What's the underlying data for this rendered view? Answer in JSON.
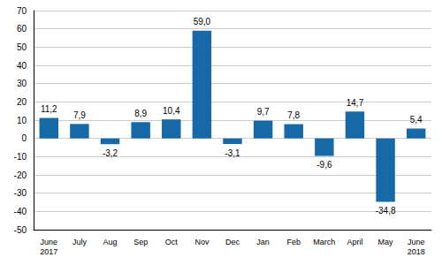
{
  "chart_data": {
    "type": "bar",
    "categories": [
      "June\n2017",
      "July",
      "Aug",
      "Sep",
      "Oct",
      "Nov",
      "Dec",
      "Jan",
      "Feb",
      "March",
      "April",
      "May",
      "June\n2018"
    ],
    "values": [
      11.2,
      7.9,
      -3.2,
      8.9,
      10.4,
      59.0,
      -3.1,
      9.7,
      7.8,
      -9.6,
      14.7,
      -34.8,
      5.4
    ],
    "value_labels": [
      "11,2",
      "7,9",
      "-3,2",
      "8,9",
      "10,4",
      "59,0",
      "-3,1",
      "9,7",
      "7,8",
      "-9,6",
      "14,7",
      "-34,8",
      "5,4"
    ],
    "color": "#1768a6",
    "ylim": [
      -50,
      70
    ],
    "yticks": [
      -50,
      -40,
      -30,
      -20,
      -10,
      0,
      10,
      20,
      30,
      40,
      50,
      60,
      70
    ],
    "grid": true,
    "data_labels": true
  }
}
